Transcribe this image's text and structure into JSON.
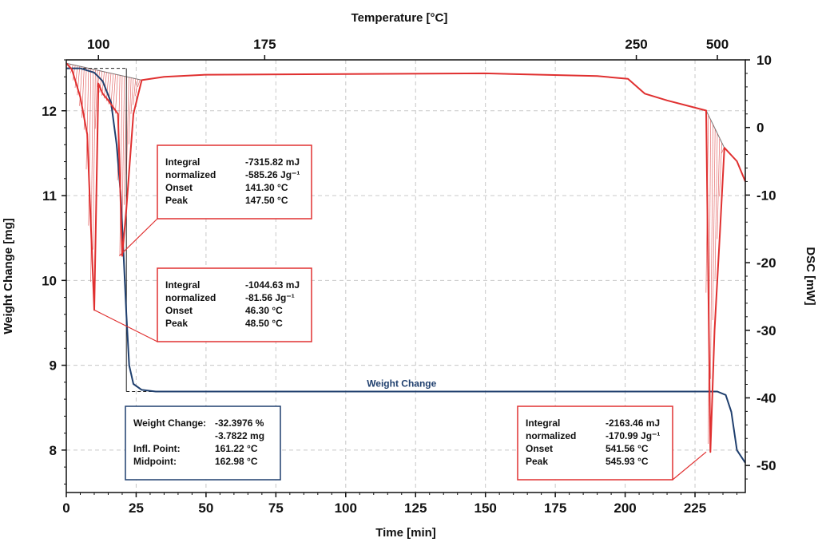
{
  "chart_data": {
    "type": "line",
    "title": "",
    "xlabel": "Time [min]",
    "x_top_label": "Temperature [°C]",
    "ylabel_left": "Weight Change [mg]",
    "ylabel_right": "DSC [mW]",
    "xlim": [
      0,
      243
    ],
    "ylim_left": [
      7.5,
      12.6
    ],
    "ylim_right": [
      -54,
      10
    ],
    "x_ticks": [
      0,
      25,
      50,
      75,
      100,
      125,
      150,
      175,
      200,
      225
    ],
    "x_tick_labels": [
      "0",
      "25",
      "50",
      "75",
      "100",
      "125",
      "150",
      "175",
      "200",
      "225"
    ],
    "x_top_ticks": [
      {
        "time": 11.5,
        "label": "100"
      },
      {
        "time": 71,
        "label": "175"
      },
      {
        "time": 204,
        "label": "250"
      },
      {
        "time": 233,
        "label": "500"
      }
    ],
    "y_left_ticks": [
      8,
      9,
      10,
      11,
      12
    ],
    "y_left_tick_labels": [
      "8",
      "9",
      "10",
      "11",
      "12"
    ],
    "y_right_ticks": [
      10,
      0,
      -10,
      -20,
      -30,
      -40,
      -50
    ],
    "y_right_tick_labels": [
      "10",
      "0",
      "-10",
      "-20",
      "-30",
      "-40",
      "-50"
    ],
    "grid": true,
    "colors": {
      "weight": "#1f3f6e",
      "dsc": "#e03030",
      "grid": "#c8c8c8",
      "axis": "#111111"
    },
    "series": [
      {
        "name": "Weight Change",
        "axis": "left",
        "x": [
          0,
          5,
          10,
          13,
          16,
          18,
          19.5,
          20.5,
          21.5,
          22.5,
          24,
          27,
          32,
          50,
          100,
          150,
          200,
          230,
          233,
          236,
          238,
          240,
          243
        ],
        "y": [
          12.5,
          12.5,
          12.45,
          12.35,
          12.1,
          11.6,
          11.0,
          10.3,
          9.6,
          9.0,
          8.78,
          8.71,
          8.69,
          8.69,
          8.69,
          8.69,
          8.69,
          8.69,
          8.69,
          8.65,
          8.45,
          8.0,
          7.85
        ]
      },
      {
        "name": "DSC",
        "axis": "right",
        "x": [
          0,
          2,
          5,
          7.5,
          10,
          11.5,
          13,
          15,
          18.5,
          20,
          21.5,
          24,
          27,
          35,
          50,
          100,
          150,
          190,
          201,
          207,
          215,
          229,
          230.5,
          232,
          234,
          235.5,
          240,
          243
        ],
        "y": [
          9.5,
          8.6,
          4.5,
          -1,
          -27,
          6.5,
          5.0,
          4.0,
          2.0,
          -19,
          -12,
          2.0,
          7.0,
          7.5,
          7.8,
          7.9,
          8.0,
          7.6,
          7.2,
          5.0,
          4.0,
          2.5,
          -48,
          -30,
          -15,
          -3,
          -5,
          -8
        ]
      }
    ],
    "annotations": [
      {
        "rows": [
          {
            "label": "Integral",
            "value": "-7315.82 mJ"
          },
          {
            "label": "normalized",
            "value": "-585.26 Jg⁻¹"
          },
          {
            "label": "Onset",
            "value": "141.30 °C"
          },
          {
            "label": "Peak",
            "value": "147.50 °C"
          }
        ]
      },
      {
        "rows": [
          {
            "label": "Integral",
            "value": "-1044.63 mJ"
          },
          {
            "label": "normalized",
            "value": "-81.56 Jg⁻¹"
          },
          {
            "label": "Onset",
            "value": "46.30 °C"
          },
          {
            "label": "Peak",
            "value": "48.50 °C"
          }
        ]
      },
      {
        "rows": [
          {
            "label": "Weight Change:",
            "value": "-32.3976 %"
          },
          {
            "label": "",
            "value": "-3.7822 mg"
          },
          {
            "label": "Infl. Point:",
            "value": "161.22 °C"
          },
          {
            "label": "Midpoint:",
            "value": "162.98 °C"
          }
        ]
      },
      {
        "rows": [
          {
            "label": "Integral",
            "value": "-2163.46 mJ"
          },
          {
            "label": "normalized",
            "value": "-170.99 Jg⁻¹"
          },
          {
            "label": "Onset",
            "value": "541.56 °C"
          },
          {
            "label": "Peak",
            "value": "545.93 °C"
          }
        ]
      }
    ]
  }
}
